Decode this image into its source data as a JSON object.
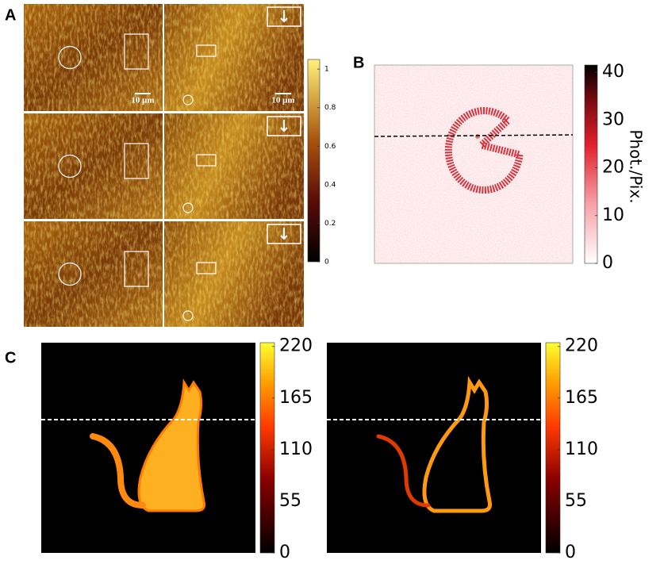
{
  "panels": {
    "a": {
      "label": "A",
      "scale_bar_labels": [
        "10 μm",
        "10 μm"
      ],
      "colorbar": {
        "ticks": [
          0,
          0.2,
          0.4,
          0.6,
          0.8,
          1
        ],
        "range": [
          0,
          1.05
        ]
      }
    },
    "b": {
      "label": "B",
      "colorbar": {
        "label": "Phot./Pix.",
        "ticks": [
          0,
          10,
          20,
          30,
          40
        ],
        "range": [
          0,
          41.5
        ]
      }
    },
    "c": {
      "label": "C",
      "colorbars": [
        {
          "ticks": [
            0,
            55,
            110,
            165,
            220
          ],
          "range": [
            0,
            224
          ]
        },
        {
          "ticks": [
            0,
            55,
            110,
            165,
            220
          ],
          "range": [
            0,
            224
          ]
        }
      ]
    }
  }
}
